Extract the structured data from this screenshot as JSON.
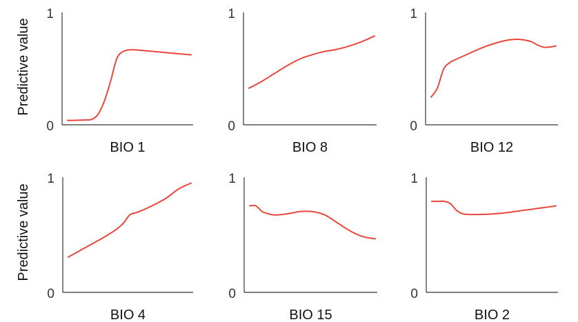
{
  "figure": {
    "ylabel_rows": [
      "Predictive value",
      "Predictive value"
    ]
  },
  "chart_data": [
    {
      "type": "line",
      "xlabel": "BIO 1",
      "ylabel": "Predictive value",
      "ylim": [
        0,
        1
      ],
      "yticks": [
        "0",
        "1"
      ],
      "color": "#e8463a",
      "x": [
        0,
        0.05,
        0.1,
        0.15,
        0.2,
        0.25,
        0.3,
        0.35,
        0.4,
        0.45,
        0.5,
        0.55,
        0.6,
        0.65,
        0.7,
        0.75,
        0.8,
        0.85,
        0.9,
        0.95,
        1.0
      ],
      "values": [
        0.04,
        0.04,
        0.042,
        0.044,
        0.05,
        0.1,
        0.22,
        0.4,
        0.6,
        0.66,
        0.675,
        0.675,
        0.67,
        0.665,
        0.66,
        0.655,
        0.65,
        0.645,
        0.64,
        0.635,
        0.63
      ]
    },
    {
      "type": "line",
      "xlabel": "BIO 8",
      "ylabel": "",
      "ylim": [
        0,
        1
      ],
      "yticks": [
        "0",
        "1"
      ],
      "color": "#e8463a",
      "x": [
        0,
        0.1,
        0.2,
        0.3,
        0.4,
        0.5,
        0.6,
        0.7,
        0.8,
        0.9,
        1.0
      ],
      "values": [
        0.33,
        0.39,
        0.46,
        0.53,
        0.59,
        0.63,
        0.66,
        0.68,
        0.71,
        0.75,
        0.8
      ]
    },
    {
      "type": "line",
      "xlabel": "BIO 12",
      "ylabel": "",
      "ylim": [
        0,
        1
      ],
      "yticks": [
        "0",
        "1"
      ],
      "color": "#e8463a",
      "x": [
        0,
        0.05,
        0.1,
        0.15,
        0.2,
        0.3,
        0.4,
        0.5,
        0.6,
        0.7,
        0.8,
        0.85,
        0.9,
        0.95,
        1.0
      ],
      "values": [
        0.25,
        0.33,
        0.5,
        0.56,
        0.59,
        0.64,
        0.69,
        0.73,
        0.76,
        0.77,
        0.75,
        0.72,
        0.7,
        0.7,
        0.71
      ]
    },
    {
      "type": "line",
      "xlabel": "BIO 4",
      "ylabel": "Predictive value",
      "ylim": [
        0,
        1
      ],
      "yticks": [
        "0",
        "1"
      ],
      "color": "#e8463a",
      "x": [
        0,
        0.1,
        0.2,
        0.3,
        0.4,
        0.45,
        0.5,
        0.55,
        0.6,
        0.7,
        0.8,
        0.9,
        1.0
      ],
      "values": [
        0.31,
        0.37,
        0.43,
        0.49,
        0.56,
        0.61,
        0.68,
        0.7,
        0.72,
        0.77,
        0.83,
        0.91,
        0.96
      ]
    },
    {
      "type": "line",
      "xlabel": "BIO 15",
      "ylabel": "",
      "ylim": [
        0,
        1
      ],
      "yticks": [
        "0",
        "1"
      ],
      "color": "#e8463a",
      "x": [
        0,
        0.05,
        0.1,
        0.15,
        0.2,
        0.3,
        0.4,
        0.5,
        0.6,
        0.7,
        0.8,
        0.9,
        1.0
      ],
      "values": [
        0.76,
        0.76,
        0.71,
        0.69,
        0.68,
        0.69,
        0.71,
        0.71,
        0.68,
        0.61,
        0.54,
        0.49,
        0.47
      ]
    },
    {
      "type": "line",
      "xlabel": "BIO 2",
      "ylabel": "",
      "ylim": [
        0,
        1
      ],
      "yticks": [
        "0",
        "1"
      ],
      "color": "#e8463a",
      "x": [
        0,
        0.05,
        0.1,
        0.15,
        0.2,
        0.25,
        0.3,
        0.4,
        0.5,
        0.6,
        0.7,
        0.8,
        0.9,
        1.0
      ],
      "values": [
        0.8,
        0.8,
        0.8,
        0.78,
        0.72,
        0.69,
        0.685,
        0.685,
        0.69,
        0.7,
        0.715,
        0.73,
        0.745,
        0.76
      ]
    }
  ]
}
